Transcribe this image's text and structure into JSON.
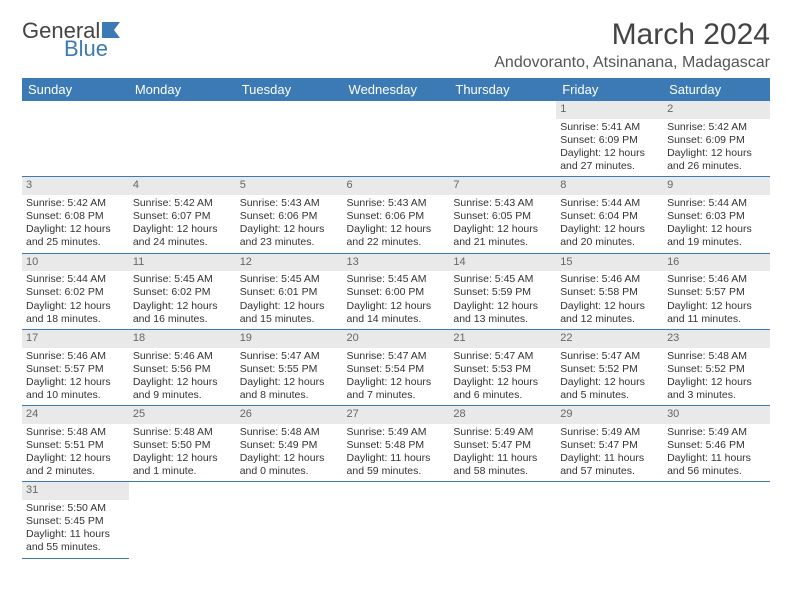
{
  "brand": {
    "word1": "General",
    "word2": "Blue"
  },
  "title": "March 2024",
  "location": "Andovoranto, Atsinanana, Madagascar",
  "colors": {
    "header_bg": "#3c7ab5",
    "header_fg": "#ffffff",
    "daynum_bg": "#e9e9e9",
    "rule": "#3c7ab5"
  },
  "dayHeaders": [
    "Sunday",
    "Monday",
    "Tuesday",
    "Wednesday",
    "Thursday",
    "Friday",
    "Saturday"
  ],
  "weeks": [
    [
      null,
      null,
      null,
      null,
      null,
      {
        "n": "1",
        "sunrise": "Sunrise: 5:41 AM",
        "sunset": "Sunset: 6:09 PM",
        "day1": "Daylight: 12 hours",
        "day2": "and 27 minutes."
      },
      {
        "n": "2",
        "sunrise": "Sunrise: 5:42 AM",
        "sunset": "Sunset: 6:09 PM",
        "day1": "Daylight: 12 hours",
        "day2": "and 26 minutes."
      }
    ],
    [
      {
        "n": "3",
        "sunrise": "Sunrise: 5:42 AM",
        "sunset": "Sunset: 6:08 PM",
        "day1": "Daylight: 12 hours",
        "day2": "and 25 minutes."
      },
      {
        "n": "4",
        "sunrise": "Sunrise: 5:42 AM",
        "sunset": "Sunset: 6:07 PM",
        "day1": "Daylight: 12 hours",
        "day2": "and 24 minutes."
      },
      {
        "n": "5",
        "sunrise": "Sunrise: 5:43 AM",
        "sunset": "Sunset: 6:06 PM",
        "day1": "Daylight: 12 hours",
        "day2": "and 23 minutes."
      },
      {
        "n": "6",
        "sunrise": "Sunrise: 5:43 AM",
        "sunset": "Sunset: 6:06 PM",
        "day1": "Daylight: 12 hours",
        "day2": "and 22 minutes."
      },
      {
        "n": "7",
        "sunrise": "Sunrise: 5:43 AM",
        "sunset": "Sunset: 6:05 PM",
        "day1": "Daylight: 12 hours",
        "day2": "and 21 minutes."
      },
      {
        "n": "8",
        "sunrise": "Sunrise: 5:44 AM",
        "sunset": "Sunset: 6:04 PM",
        "day1": "Daylight: 12 hours",
        "day2": "and 20 minutes."
      },
      {
        "n": "9",
        "sunrise": "Sunrise: 5:44 AM",
        "sunset": "Sunset: 6:03 PM",
        "day1": "Daylight: 12 hours",
        "day2": "and 19 minutes."
      }
    ],
    [
      {
        "n": "10",
        "sunrise": "Sunrise: 5:44 AM",
        "sunset": "Sunset: 6:02 PM",
        "day1": "Daylight: 12 hours",
        "day2": "and 18 minutes."
      },
      {
        "n": "11",
        "sunrise": "Sunrise: 5:45 AM",
        "sunset": "Sunset: 6:02 PM",
        "day1": "Daylight: 12 hours",
        "day2": "and 16 minutes."
      },
      {
        "n": "12",
        "sunrise": "Sunrise: 5:45 AM",
        "sunset": "Sunset: 6:01 PM",
        "day1": "Daylight: 12 hours",
        "day2": "and 15 minutes."
      },
      {
        "n": "13",
        "sunrise": "Sunrise: 5:45 AM",
        "sunset": "Sunset: 6:00 PM",
        "day1": "Daylight: 12 hours",
        "day2": "and 14 minutes."
      },
      {
        "n": "14",
        "sunrise": "Sunrise: 5:45 AM",
        "sunset": "Sunset: 5:59 PM",
        "day1": "Daylight: 12 hours",
        "day2": "and 13 minutes."
      },
      {
        "n": "15",
        "sunrise": "Sunrise: 5:46 AM",
        "sunset": "Sunset: 5:58 PM",
        "day1": "Daylight: 12 hours",
        "day2": "and 12 minutes."
      },
      {
        "n": "16",
        "sunrise": "Sunrise: 5:46 AM",
        "sunset": "Sunset: 5:57 PM",
        "day1": "Daylight: 12 hours",
        "day2": "and 11 minutes."
      }
    ],
    [
      {
        "n": "17",
        "sunrise": "Sunrise: 5:46 AM",
        "sunset": "Sunset: 5:57 PM",
        "day1": "Daylight: 12 hours",
        "day2": "and 10 minutes."
      },
      {
        "n": "18",
        "sunrise": "Sunrise: 5:46 AM",
        "sunset": "Sunset: 5:56 PM",
        "day1": "Daylight: 12 hours",
        "day2": "and 9 minutes."
      },
      {
        "n": "19",
        "sunrise": "Sunrise: 5:47 AM",
        "sunset": "Sunset: 5:55 PM",
        "day1": "Daylight: 12 hours",
        "day2": "and 8 minutes."
      },
      {
        "n": "20",
        "sunrise": "Sunrise: 5:47 AM",
        "sunset": "Sunset: 5:54 PM",
        "day1": "Daylight: 12 hours",
        "day2": "and 7 minutes."
      },
      {
        "n": "21",
        "sunrise": "Sunrise: 5:47 AM",
        "sunset": "Sunset: 5:53 PM",
        "day1": "Daylight: 12 hours",
        "day2": "and 6 minutes."
      },
      {
        "n": "22",
        "sunrise": "Sunrise: 5:47 AM",
        "sunset": "Sunset: 5:52 PM",
        "day1": "Daylight: 12 hours",
        "day2": "and 5 minutes."
      },
      {
        "n": "23",
        "sunrise": "Sunrise: 5:48 AM",
        "sunset": "Sunset: 5:52 PM",
        "day1": "Daylight: 12 hours",
        "day2": "and 3 minutes."
      }
    ],
    [
      {
        "n": "24",
        "sunrise": "Sunrise: 5:48 AM",
        "sunset": "Sunset: 5:51 PM",
        "day1": "Daylight: 12 hours",
        "day2": "and 2 minutes."
      },
      {
        "n": "25",
        "sunrise": "Sunrise: 5:48 AM",
        "sunset": "Sunset: 5:50 PM",
        "day1": "Daylight: 12 hours",
        "day2": "and 1 minute."
      },
      {
        "n": "26",
        "sunrise": "Sunrise: 5:48 AM",
        "sunset": "Sunset: 5:49 PM",
        "day1": "Daylight: 12 hours",
        "day2": "and 0 minutes."
      },
      {
        "n": "27",
        "sunrise": "Sunrise: 5:49 AM",
        "sunset": "Sunset: 5:48 PM",
        "day1": "Daylight: 11 hours",
        "day2": "and 59 minutes."
      },
      {
        "n": "28",
        "sunrise": "Sunrise: 5:49 AM",
        "sunset": "Sunset: 5:47 PM",
        "day1": "Daylight: 11 hours",
        "day2": "and 58 minutes."
      },
      {
        "n": "29",
        "sunrise": "Sunrise: 5:49 AM",
        "sunset": "Sunset: 5:47 PM",
        "day1": "Daylight: 11 hours",
        "day2": "and 57 minutes."
      },
      {
        "n": "30",
        "sunrise": "Sunrise: 5:49 AM",
        "sunset": "Sunset: 5:46 PM",
        "day1": "Daylight: 11 hours",
        "day2": "and 56 minutes."
      }
    ],
    [
      {
        "n": "31",
        "sunrise": "Sunrise: 5:50 AM",
        "sunset": "Sunset: 5:45 PM",
        "day1": "Daylight: 11 hours",
        "day2": "and 55 minutes."
      },
      null,
      null,
      null,
      null,
      null,
      null
    ]
  ]
}
